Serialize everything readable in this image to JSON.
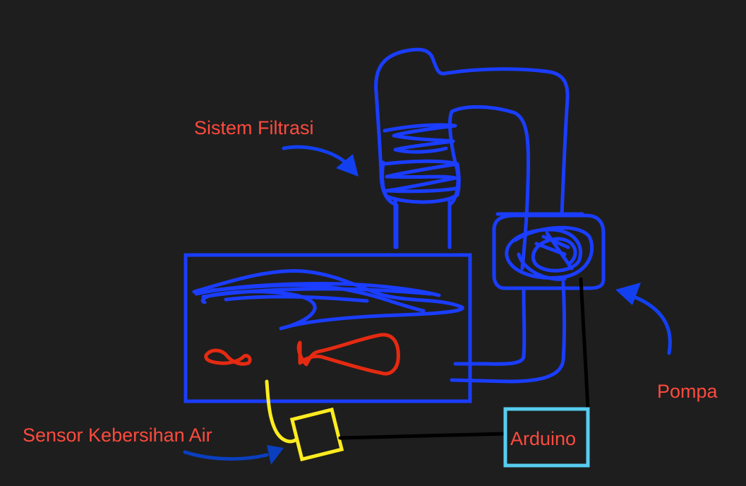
{
  "labels": {
    "filtration": "Sistem Filtrasi",
    "pump": "Pompa",
    "sensor": "Sensor Kebersihan Air",
    "arduino": "Arduino"
  },
  "colors": {
    "background": "#1e1e1e",
    "label_text": "#ff4a3d",
    "pipe_blue": "#1a3dff",
    "arrow_blue": "#1240f0",
    "fish_red": "#e52a12",
    "sensor_yellow": "#ffec1f",
    "wire_black": "#000000",
    "arduino_cyan": "#57cdf0"
  },
  "icons": {
    "filtration_arrow": "curved-arrow-icon",
    "pump_arrow": "curved-arrow-icon",
    "sensor_arrow": "curved-arrow-icon"
  }
}
